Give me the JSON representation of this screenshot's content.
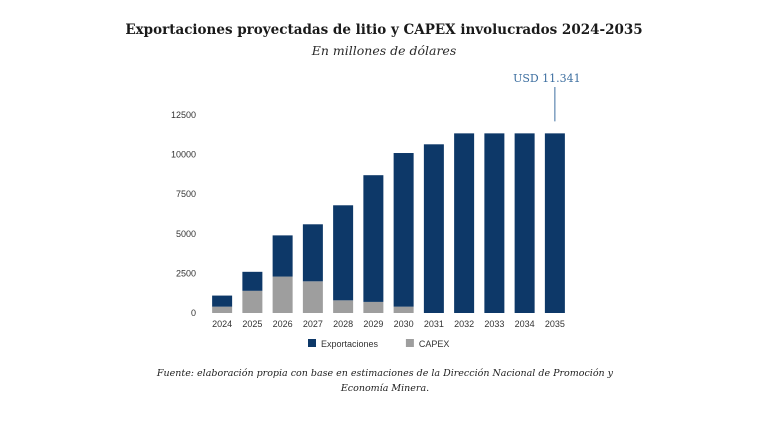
{
  "chart_data": {
    "type": "bar",
    "stacked": true,
    "title": "Exportaciones proyectadas de litio y CAPEX involucrados 2024-2035",
    "subtitle": "En millones de dólares",
    "categories": [
      "2024",
      "2025",
      "2026",
      "2027",
      "2028",
      "2029",
      "2030",
      "2031",
      "2032",
      "2033",
      "2034",
      "2035"
    ],
    "series": [
      {
        "name": "CAPEX",
        "color": "#9e9e9e",
        "values": [
          400,
          1400,
          2300,
          2000,
          800,
          700,
          400,
          0,
          0,
          0,
          0,
          0
        ]
      },
      {
        "name": "Exportaciones",
        "color": "#0d3868",
        "values": [
          700,
          1200,
          2600,
          3600,
          6000,
          8000,
          9700,
          10650,
          11341,
          11341,
          11341,
          11341
        ]
      }
    ],
    "ylim": [
      0,
      12500
    ],
    "yticks": [
      0,
      2500,
      5000,
      7500,
      10000,
      12500
    ],
    "legend": "bottom",
    "annotation": {
      "text": "USD 11.341",
      "category": "2035",
      "value": 11341
    },
    "source": "Fuente: elaboración propia con base en estimaciones de la Dirección Nacional de Promoción y Economía Minera."
  }
}
